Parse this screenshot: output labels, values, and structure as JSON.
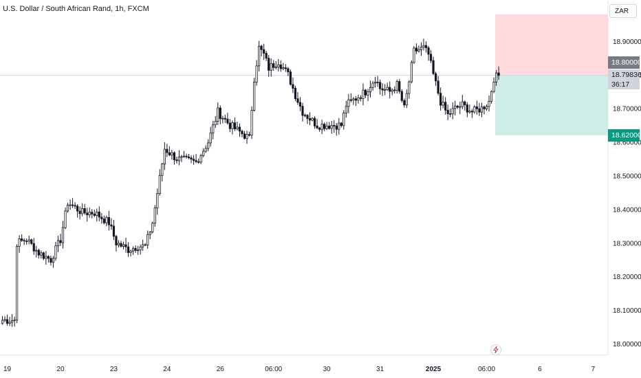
{
  "title": "U.S. Dollar / South African Rand, 1h, FXCM",
  "currency_button": "ZAR",
  "price_tags": {
    "top": "18.80000",
    "current": "18.79836",
    "countdown": "36:17",
    "bottom": "18.62000"
  },
  "colors": {
    "candle": "#131722",
    "profit_zone": "#cfece6",
    "loss_zone": "#ffdadd",
    "bottom_tag": "#089981",
    "top_tag": "#787b86",
    "price_line": "#d1d4dc"
  },
  "icons": {
    "flash": "lightning-icon"
  },
  "chart_data": {
    "type": "candlestick",
    "title": "U.S. Dollar / South African Rand, 1h, FXCM",
    "ylim": [
      17.97,
      19.0
    ],
    "y_ticks": [
      "18.00000",
      "18.10000",
      "18.20000",
      "18.30000",
      "18.40000",
      "18.50000",
      "18.60000",
      "18.70000",
      "18.80000",
      "18.90000"
    ],
    "x_ticks": [
      {
        "label": "19",
        "index": 2
      },
      {
        "label": "20",
        "index": 24
      },
      {
        "label": "23",
        "index": 46
      },
      {
        "label": "24",
        "index": 68
      },
      {
        "label": "26",
        "index": 90
      },
      {
        "label": "06:00",
        "index": 112
      },
      {
        "label": "30",
        "index": 134
      },
      {
        "label": "31",
        "index": 156
      },
      {
        "label": "2025",
        "index": 178,
        "bold": true
      },
      {
        "label": "06:00",
        "index": 200
      },
      {
        "label": "6",
        "index": 222
      },
      {
        "label": "7",
        "index": 244
      }
    ],
    "candle_count": 206,
    "keyframes": [
      [
        0,
        18.07
      ],
      [
        5,
        18.07
      ],
      [
        6,
        18.3
      ],
      [
        10,
        18.31
      ],
      [
        15,
        18.27
      ],
      [
        20,
        18.25
      ],
      [
        24,
        18.31
      ],
      [
        27,
        18.42
      ],
      [
        33,
        18.39
      ],
      [
        38,
        18.39
      ],
      [
        44,
        18.36
      ],
      [
        47,
        18.3
      ],
      [
        52,
        18.28
      ],
      [
        56,
        18.29
      ],
      [
        59,
        18.29
      ],
      [
        62,
        18.36
      ],
      [
        67,
        18.58
      ],
      [
        72,
        18.55
      ],
      [
        80,
        18.54
      ],
      [
        85,
        18.6
      ],
      [
        89,
        18.69
      ],
      [
        94,
        18.65
      ],
      [
        98,
        18.63
      ],
      [
        102,
        18.61
      ],
      [
        104,
        18.79
      ],
      [
        106,
        18.88
      ],
      [
        108,
        18.86
      ],
      [
        110,
        18.82
      ],
      [
        114,
        18.84
      ],
      [
        118,
        18.8
      ],
      [
        121,
        18.74
      ],
      [
        124,
        18.69
      ],
      [
        127,
        18.67
      ],
      [
        130,
        18.65
      ],
      [
        134,
        18.65
      ],
      [
        140,
        18.65
      ],
      [
        142,
        18.71
      ],
      [
        146,
        18.73
      ],
      [
        150,
        18.75
      ],
      [
        154,
        18.79
      ],
      [
        156,
        18.76
      ],
      [
        160,
        18.75
      ],
      [
        163,
        18.77
      ],
      [
        166,
        18.7
      ],
      [
        168,
        18.78
      ],
      [
        170,
        18.87
      ],
      [
        174,
        18.88
      ],
      [
        176,
        18.86
      ],
      [
        178,
        18.8
      ],
      [
        181,
        18.72
      ],
      [
        184,
        18.68
      ],
      [
        187,
        18.7
      ],
      [
        190,
        18.71
      ],
      [
        194,
        18.69
      ],
      [
        198,
        18.7
      ],
      [
        201,
        18.72
      ],
      [
        203,
        18.79
      ],
      [
        205,
        18.798
      ]
    ],
    "position": {
      "type": "short",
      "entry": 18.79836,
      "stop": 18.98,
      "target": 18.62,
      "start_index": 203
    }
  }
}
